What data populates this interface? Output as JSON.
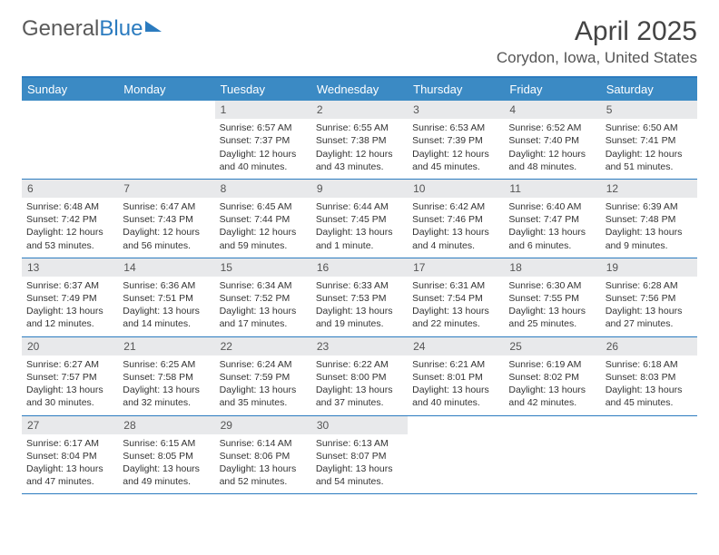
{
  "brand": {
    "part1": "General",
    "part2": "Blue"
  },
  "title": "April 2025",
  "location": "Corydon, Iowa, United States",
  "colors": {
    "header_bar": "#3b8ac4",
    "rule": "#2b7bbf",
    "daynum_bg": "#e8e9eb",
    "text": "#333333",
    "title_text": "#444444"
  },
  "typography": {
    "title_fontsize": 30,
    "location_fontsize": 17,
    "dow_fontsize": 13,
    "cell_fontsize": 10.5
  },
  "days_of_week": [
    "Sunday",
    "Monday",
    "Tuesday",
    "Wednesday",
    "Thursday",
    "Friday",
    "Saturday"
  ],
  "weeks": [
    [
      {
        "empty": true
      },
      {
        "empty": true
      },
      {
        "num": "1",
        "sunrise": "Sunrise: 6:57 AM",
        "sunset": "Sunset: 7:37 PM",
        "daylight": "Daylight: 12 hours and 40 minutes."
      },
      {
        "num": "2",
        "sunrise": "Sunrise: 6:55 AM",
        "sunset": "Sunset: 7:38 PM",
        "daylight": "Daylight: 12 hours and 43 minutes."
      },
      {
        "num": "3",
        "sunrise": "Sunrise: 6:53 AM",
        "sunset": "Sunset: 7:39 PM",
        "daylight": "Daylight: 12 hours and 45 minutes."
      },
      {
        "num": "4",
        "sunrise": "Sunrise: 6:52 AM",
        "sunset": "Sunset: 7:40 PM",
        "daylight": "Daylight: 12 hours and 48 minutes."
      },
      {
        "num": "5",
        "sunrise": "Sunrise: 6:50 AM",
        "sunset": "Sunset: 7:41 PM",
        "daylight": "Daylight: 12 hours and 51 minutes."
      }
    ],
    [
      {
        "num": "6",
        "sunrise": "Sunrise: 6:48 AM",
        "sunset": "Sunset: 7:42 PM",
        "daylight": "Daylight: 12 hours and 53 minutes."
      },
      {
        "num": "7",
        "sunrise": "Sunrise: 6:47 AM",
        "sunset": "Sunset: 7:43 PM",
        "daylight": "Daylight: 12 hours and 56 minutes."
      },
      {
        "num": "8",
        "sunrise": "Sunrise: 6:45 AM",
        "sunset": "Sunset: 7:44 PM",
        "daylight": "Daylight: 12 hours and 59 minutes."
      },
      {
        "num": "9",
        "sunrise": "Sunrise: 6:44 AM",
        "sunset": "Sunset: 7:45 PM",
        "daylight": "Daylight: 13 hours and 1 minute."
      },
      {
        "num": "10",
        "sunrise": "Sunrise: 6:42 AM",
        "sunset": "Sunset: 7:46 PM",
        "daylight": "Daylight: 13 hours and 4 minutes."
      },
      {
        "num": "11",
        "sunrise": "Sunrise: 6:40 AM",
        "sunset": "Sunset: 7:47 PM",
        "daylight": "Daylight: 13 hours and 6 minutes."
      },
      {
        "num": "12",
        "sunrise": "Sunrise: 6:39 AM",
        "sunset": "Sunset: 7:48 PM",
        "daylight": "Daylight: 13 hours and 9 minutes."
      }
    ],
    [
      {
        "num": "13",
        "sunrise": "Sunrise: 6:37 AM",
        "sunset": "Sunset: 7:49 PM",
        "daylight": "Daylight: 13 hours and 12 minutes."
      },
      {
        "num": "14",
        "sunrise": "Sunrise: 6:36 AM",
        "sunset": "Sunset: 7:51 PM",
        "daylight": "Daylight: 13 hours and 14 minutes."
      },
      {
        "num": "15",
        "sunrise": "Sunrise: 6:34 AM",
        "sunset": "Sunset: 7:52 PM",
        "daylight": "Daylight: 13 hours and 17 minutes."
      },
      {
        "num": "16",
        "sunrise": "Sunrise: 6:33 AM",
        "sunset": "Sunset: 7:53 PM",
        "daylight": "Daylight: 13 hours and 19 minutes."
      },
      {
        "num": "17",
        "sunrise": "Sunrise: 6:31 AM",
        "sunset": "Sunset: 7:54 PM",
        "daylight": "Daylight: 13 hours and 22 minutes."
      },
      {
        "num": "18",
        "sunrise": "Sunrise: 6:30 AM",
        "sunset": "Sunset: 7:55 PM",
        "daylight": "Daylight: 13 hours and 25 minutes."
      },
      {
        "num": "19",
        "sunrise": "Sunrise: 6:28 AM",
        "sunset": "Sunset: 7:56 PM",
        "daylight": "Daylight: 13 hours and 27 minutes."
      }
    ],
    [
      {
        "num": "20",
        "sunrise": "Sunrise: 6:27 AM",
        "sunset": "Sunset: 7:57 PM",
        "daylight": "Daylight: 13 hours and 30 minutes."
      },
      {
        "num": "21",
        "sunrise": "Sunrise: 6:25 AM",
        "sunset": "Sunset: 7:58 PM",
        "daylight": "Daylight: 13 hours and 32 minutes."
      },
      {
        "num": "22",
        "sunrise": "Sunrise: 6:24 AM",
        "sunset": "Sunset: 7:59 PM",
        "daylight": "Daylight: 13 hours and 35 minutes."
      },
      {
        "num": "23",
        "sunrise": "Sunrise: 6:22 AM",
        "sunset": "Sunset: 8:00 PM",
        "daylight": "Daylight: 13 hours and 37 minutes."
      },
      {
        "num": "24",
        "sunrise": "Sunrise: 6:21 AM",
        "sunset": "Sunset: 8:01 PM",
        "daylight": "Daylight: 13 hours and 40 minutes."
      },
      {
        "num": "25",
        "sunrise": "Sunrise: 6:19 AM",
        "sunset": "Sunset: 8:02 PM",
        "daylight": "Daylight: 13 hours and 42 minutes."
      },
      {
        "num": "26",
        "sunrise": "Sunrise: 6:18 AM",
        "sunset": "Sunset: 8:03 PM",
        "daylight": "Daylight: 13 hours and 45 minutes."
      }
    ],
    [
      {
        "num": "27",
        "sunrise": "Sunrise: 6:17 AM",
        "sunset": "Sunset: 8:04 PM",
        "daylight": "Daylight: 13 hours and 47 minutes."
      },
      {
        "num": "28",
        "sunrise": "Sunrise: 6:15 AM",
        "sunset": "Sunset: 8:05 PM",
        "daylight": "Daylight: 13 hours and 49 minutes."
      },
      {
        "num": "29",
        "sunrise": "Sunrise: 6:14 AM",
        "sunset": "Sunset: 8:06 PM",
        "daylight": "Daylight: 13 hours and 52 minutes."
      },
      {
        "num": "30",
        "sunrise": "Sunrise: 6:13 AM",
        "sunset": "Sunset: 8:07 PM",
        "daylight": "Daylight: 13 hours and 54 minutes."
      },
      {
        "empty": true
      },
      {
        "empty": true
      },
      {
        "empty": true
      }
    ]
  ]
}
